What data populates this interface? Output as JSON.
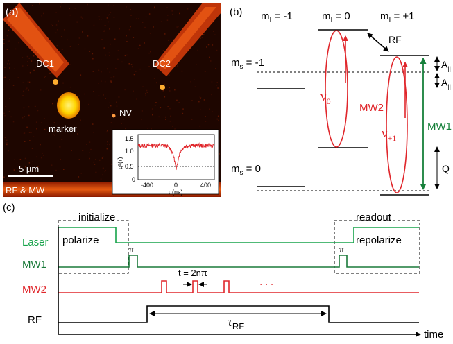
{
  "panel_a": {
    "label": "(a)",
    "dc1": "DC1",
    "dc2": "DC2",
    "marker": "marker",
    "nv": "NV",
    "scalebar": "5 µm",
    "bottom_label": "RF & MW",
    "inset": {
      "ylabel": "g²(τ)",
      "xlabel": "τ (ns)",
      "yticks": [
        "1.5",
        "1.0",
        "0.5",
        "0"
      ],
      "xticks": [
        "-400",
        "0",
        "400"
      ]
    }
  },
  "panel_b": {
    "label": "(b)",
    "mi_minus": "m",
    "mi_minus_sub": "I",
    "mi_minus_val": " = -1",
    "mi_zero": "m",
    "mi_zero_sub": "I",
    "mi_zero_val": " = 0",
    "mi_plus": "m",
    "mi_plus_sub": "I",
    "mi_plus_val": " = +1",
    "ms_minus": "m",
    "ms_minus_sub": "s",
    "ms_minus_val": " = -1",
    "ms_zero": "m",
    "ms_zero_sub": "s",
    "ms_zero_val": " = 0",
    "rf": "RF",
    "nu0": "ν",
    "nu0_sub": "0",
    "nu1": "ν",
    "nu1_sub": "+1",
    "mw2": "MW2",
    "mw1": "MW1",
    "a_par": "A",
    "a_par_sub": "||",
    "q": "Q"
  },
  "panel_c": {
    "label": "(c)",
    "initialize": "initialize",
    "readout": "readout",
    "laser": "Laser",
    "mw1": "MW1",
    "mw2": "MW2",
    "rf": "RF",
    "polarize": "polarize",
    "repolarize": "repolarize",
    "pi1": "π",
    "pi2": "π",
    "t_eq": "t = 2nπ",
    "dots": "· · ·",
    "tau": "τ",
    "tau_sub": "RF",
    "time": "time"
  },
  "colors": {
    "laser": "#16a34a",
    "mw1": "#1a7a3a",
    "mw2": "#e0262b",
    "rf": "#000000",
    "mw1_arrow": "#16803a",
    "micrograph_bg": "#1a0500"
  }
}
